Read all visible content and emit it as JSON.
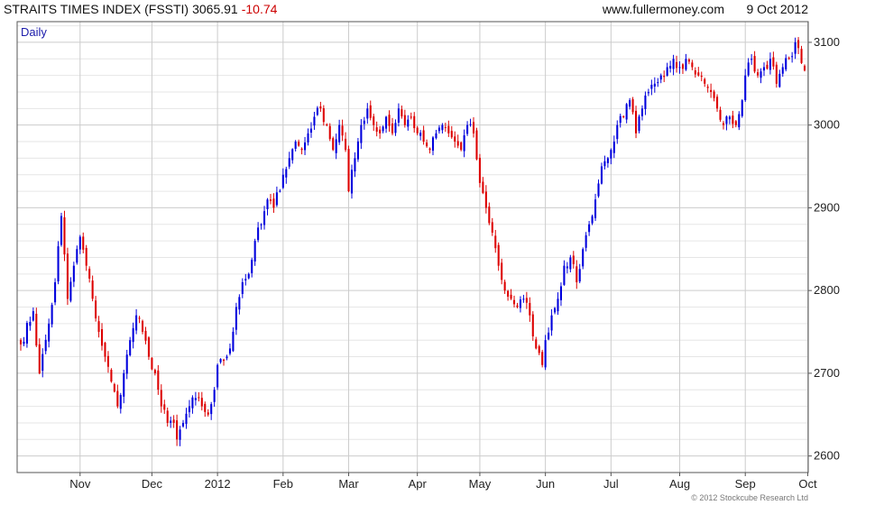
{
  "header": {
    "index_name": "STRAITS TIMES INDEX (FSSTI)",
    "last": "3065.91",
    "change": "-10.74",
    "website": "www.fullermoney.com",
    "date": "9 Oct 2012"
  },
  "footer": {
    "copyright": "© 2012 Stockcube Research Ltd"
  },
  "colors": {
    "up": "#0000dd",
    "down": "#dd0000",
    "change": "#cc0000",
    "period": "#1a1aaa",
    "grid": "#cccccc"
  },
  "chart_data": {
    "type": "candlestick",
    "period_label": "Daily",
    "x_tick_labels": [
      "Nov",
      "Dec",
      "2012",
      "Feb",
      "Mar",
      "Apr",
      "May",
      "Jun",
      "Jul",
      "Aug",
      "Sep",
      "Oct"
    ],
    "x_tick_bars": [
      19,
      42,
      63,
      84,
      105,
      127,
      147,
      168,
      189,
      211,
      232,
      252
    ],
    "y_ticks": [
      2600,
      2700,
      2800,
      2900,
      3000,
      3100
    ],
    "ylim": [
      2580,
      3125
    ],
    "grid": true,
    "legend": "none",
    "anchors": [
      [
        0,
        2735
      ],
      [
        4,
        2775
      ],
      [
        6,
        2700
      ],
      [
        9,
        2760
      ],
      [
        11,
        2810
      ],
      [
        13,
        2890
      ],
      [
        15,
        2790
      ],
      [
        17,
        2830
      ],
      [
        19,
        2865
      ],
      [
        21,
        2830
      ],
      [
        23,
        2790
      ],
      [
        25,
        2750
      ],
      [
        27,
        2720
      ],
      [
        29,
        2690
      ],
      [
        31,
        2660
      ],
      [
        33,
        2700
      ],
      [
        35,
        2740
      ],
      [
        37,
        2770
      ],
      [
        39,
        2750
      ],
      [
        41,
        2720
      ],
      [
        43,
        2700
      ],
      [
        45,
        2660
      ],
      [
        47,
        2640
      ],
      [
        49,
        2640
      ],
      [
        50,
        2620
      ],
      [
        52,
        2640
      ],
      [
        54,
        2660
      ],
      [
        56,
        2670
      ],
      [
        58,
        2660
      ],
      [
        60,
        2650
      ],
      [
        62,
        2680
      ],
      [
        63,
        2710
      ],
      [
        65,
        2715
      ],
      [
        67,
        2730
      ],
      [
        69,
        2780
      ],
      [
        71,
        2810
      ],
      [
        73,
        2820
      ],
      [
        75,
        2860
      ],
      [
        77,
        2880
      ],
      [
        79,
        2910
      ],
      [
        81,
        2900
      ],
      [
        84,
        2940
      ],
      [
        86,
        2960
      ],
      [
        88,
        2980
      ],
      [
        90,
        2970
      ],
      [
        92,
        2990
      ],
      [
        94,
        3010
      ],
      [
        96,
        3020
      ],
      [
        98,
        3000
      ],
      [
        100,
        2970
      ],
      [
        102,
        3000
      ],
      [
        104,
        2970
      ],
      [
        105,
        2920
      ],
      [
        107,
        2960
      ],
      [
        109,
        3000
      ],
      [
        111,
        3020
      ],
      [
        113,
        3000
      ],
      [
        115,
        2990
      ],
      [
        117,
        3010
      ],
      [
        119,
        2990
      ],
      [
        121,
        3020
      ],
      [
        123,
        3000
      ],
      [
        125,
        3010
      ],
      [
        127,
        2990
      ],
      [
        129,
        2980
      ],
      [
        131,
        2970
      ],
      [
        133,
        2990
      ],
      [
        135,
        3000
      ],
      [
        137,
        2990
      ],
      [
        139,
        2980
      ],
      [
        141,
        2970
      ],
      [
        143,
        3000
      ],
      [
        145,
        2990
      ],
      [
        147,
        2930
      ],
      [
        149,
        2900
      ],
      [
        151,
        2870
      ],
      [
        153,
        2830
      ],
      [
        155,
        2800
      ],
      [
        157,
        2790
      ],
      [
        159,
        2780
      ],
      [
        161,
        2790
      ],
      [
        163,
        2770
      ],
      [
        165,
        2730
      ],
      [
        167,
        2710
      ],
      [
        168,
        2740
      ],
      [
        170,
        2770
      ],
      [
        172,
        2790
      ],
      [
        174,
        2830
      ],
      [
        176,
        2840
      ],
      [
        178,
        2810
      ],
      [
        180,
        2850
      ],
      [
        182,
        2880
      ],
      [
        184,
        2910
      ],
      [
        186,
        2950
      ],
      [
        188,
        2960
      ],
      [
        189,
        2970
      ],
      [
        191,
        3000
      ],
      [
        193,
        3010
      ],
      [
        195,
        3030
      ],
      [
        197,
        2990
      ],
      [
        199,
        3020
      ],
      [
        201,
        3040
      ],
      [
        203,
        3050
      ],
      [
        205,
        3060
      ],
      [
        207,
        3070
      ],
      [
        209,
        3080
      ],
      [
        211,
        3070
      ],
      [
        213,
        3080
      ],
      [
        215,
        3070
      ],
      [
        217,
        3060
      ],
      [
        219,
        3050
      ],
      [
        221,
        3040
      ],
      [
        223,
        3020
      ],
      [
        225,
        3000
      ],
      [
        227,
        3010
      ],
      [
        229,
        3000
      ],
      [
        231,
        3030
      ],
      [
        232,
        3060
      ],
      [
        234,
        3080
      ],
      [
        236,
        3060
      ],
      [
        238,
        3070
      ],
      [
        240,
        3080
      ],
      [
        242,
        3050
      ],
      [
        244,
        3070
      ],
      [
        246,
        3080
      ],
      [
        248,
        3100
      ],
      [
        250,
        3075
      ],
      [
        251,
        3066
      ]
    ]
  }
}
